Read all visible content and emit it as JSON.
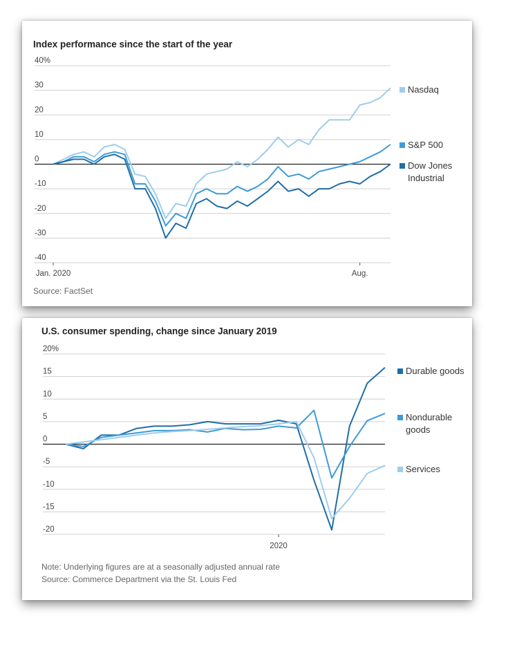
{
  "chart_data": [
    {
      "type": "line",
      "title": "Index performance since the start of the year",
      "categories": [
        "Jan. 2020",
        null,
        null,
        null,
        null,
        null,
        null,
        null,
        null,
        null,
        null,
        null,
        null,
        null,
        null,
        null,
        null,
        null,
        null,
        null,
        null,
        null,
        null,
        null,
        null,
        null,
        null,
        null,
        null,
        null,
        "Aug.",
        null,
        null,
        null
      ],
      "series": [
        {
          "name": "Nasdaq",
          "color": "#9dcdee",
          "values": [
            0,
            2,
            4,
            5,
            3,
            7,
            8,
            6,
            -4,
            -5,
            -12,
            -22,
            -16,
            -17,
            -8,
            -4,
            -3,
            -2,
            1,
            -1,
            2,
            6,
            11,
            7,
            10,
            8,
            14,
            18,
            18,
            18,
            24,
            25,
            27,
            31
          ]
        },
        {
          "name": "S&P 500",
          "color": "#3d9bd8",
          "values": [
            0,
            1,
            3,
            3,
            1,
            4,
            5,
            4,
            -8,
            -8,
            -15,
            -25,
            -20,
            -22,
            -12,
            -10,
            -12,
            -12,
            -9,
            -11,
            -9,
            -6,
            -1,
            -5,
            -4,
            -6,
            -3,
            -2,
            -1,
            0,
            1,
            3,
            5,
            8
          ]
        },
        {
          "name": "Dow Jones Industrial",
          "color": "#1f6da6",
          "values": [
            0,
            1,
            2,
            2,
            0,
            3,
            4,
            2,
            -10,
            -10,
            -18,
            -30,
            -24,
            -26,
            -16,
            -14,
            -17,
            -18,
            -15,
            -17,
            -14,
            -11,
            -7,
            -11,
            -10,
            -13,
            -10,
            -10,
            -8,
            -7,
            -8,
            -5,
            -3,
            0
          ]
        }
      ],
      "ylim": [
        -40,
        40
      ],
      "yticks": [
        -40,
        -30,
        -20,
        -10,
        0,
        10,
        20,
        30,
        {
          "value": 40,
          "label": "40%"
        }
      ],
      "grid": true,
      "source": "Source: FactSet"
    },
    {
      "type": "line",
      "title": "U.S. consumer spending, change since January 2019",
      "categories": [
        null,
        null,
        null,
        null,
        null,
        null,
        null,
        null,
        null,
        null,
        null,
        null,
        "2020",
        null,
        null,
        null,
        null,
        null,
        null
      ],
      "series": [
        {
          "name": "Durable goods",
          "color": "#1f6da6",
          "values": [
            0,
            -1,
            2,
            2,
            3.5,
            4,
            4,
            4.3,
            5,
            4.5,
            4.5,
            4.5,
            5.3,
            4.5,
            -8,
            -19,
            4,
            13.5,
            17
          ]
        },
        {
          "name": "Nondurable goods",
          "color": "#3d9bd8",
          "values": [
            0,
            -0.5,
            1.5,
            2,
            2.5,
            3,
            3,
            3.2,
            2.7,
            3.5,
            3.2,
            3.3,
            4,
            3.6,
            7.5,
            -7.5,
            -0.5,
            5.2,
            6.8
          ]
        },
        {
          "name": "Services",
          "color": "#9dcdee",
          "values": [
            0,
            0.5,
            1,
            1.5,
            2,
            2.5,
            2.8,
            3,
            3.3,
            3.6,
            3.9,
            4.1,
            4.5,
            5,
            -3,
            -16.5,
            -12,
            -6.5,
            -4.7
          ]
        }
      ],
      "ylim": [
        -20,
        20
      ],
      "yticks": [
        -20,
        -15,
        -10,
        -5,
        0,
        5,
        10,
        15,
        {
          "value": 20,
          "label": "20%"
        }
      ],
      "grid": true,
      "note": "Note: Underlying figures are at a seasonally adjusted annual rate",
      "source": "Source: Commerce Department via the St. Louis Fed"
    }
  ]
}
